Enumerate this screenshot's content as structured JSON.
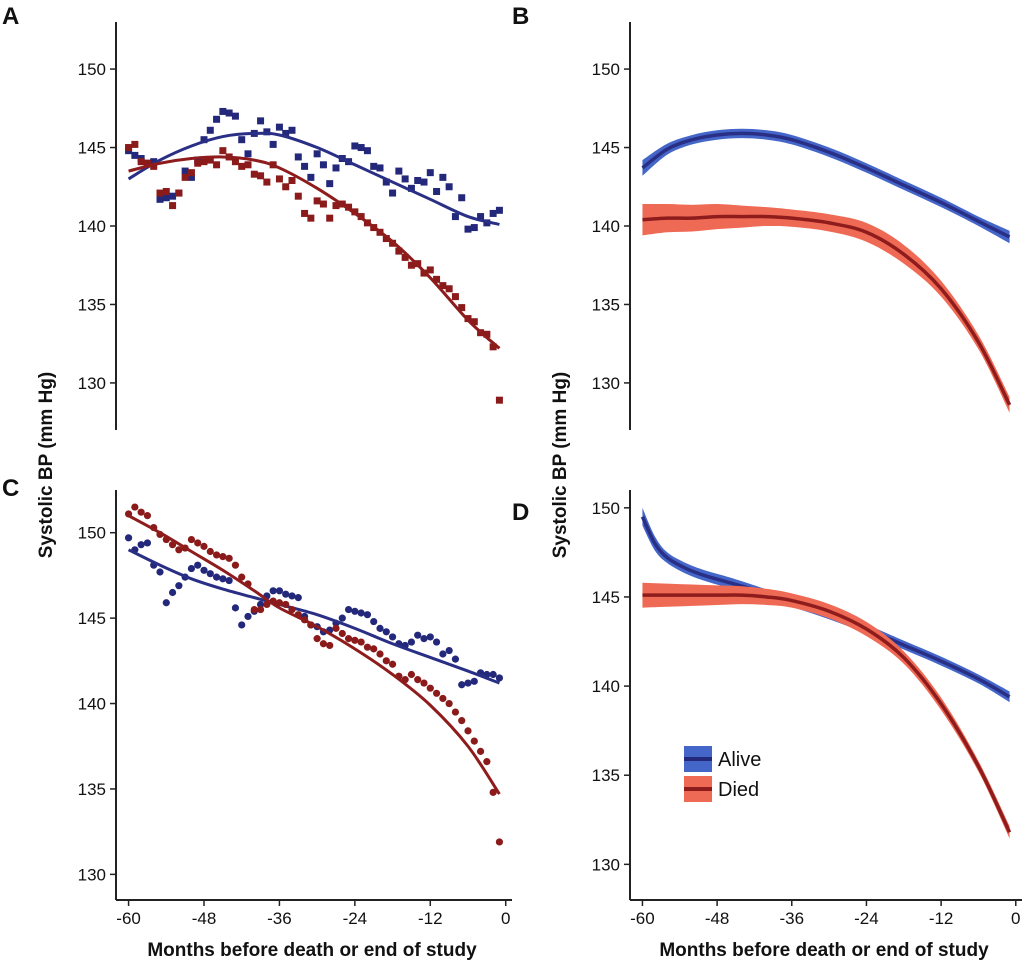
{
  "axis_titles": {
    "y_top": "Systolic BP (mm Hg)",
    "y_bottom": "Systolic BP (mm Hg)",
    "x_left": "Months before death or end of study",
    "x_right": "Months before death or end of study"
  },
  "colors": {
    "alive_marker": "#23287a",
    "alive_line": "#2a2f86",
    "alive_band": "#4466c8",
    "died_marker": "#8b1a1a",
    "died_line": "#8e1c1c",
    "died_band": "#ef6a55",
    "axis": "#222222"
  },
  "legend": [
    {
      "label": "Alive",
      "key": "alive"
    },
    {
      "label": "Died",
      "key": "died"
    }
  ],
  "chart_data": [
    {
      "panel": "A",
      "type": "scatter",
      "marker": "square",
      "xlim": [
        -62,
        1
      ],
      "ylim": [
        127,
        153
      ],
      "xticks": [],
      "yticks": [
        130,
        135,
        140,
        145,
        150
      ],
      "ylabel": "Systolic BP (mm Hg)",
      "series": [
        {
          "key": "alive",
          "x": [
            -60,
            -59,
            -58,
            -57,
            -56,
            -55,
            -54,
            -53,
            -52,
            -51,
            -50,
            -49,
            -48,
            -47,
            -46,
            -45,
            -44,
            -43,
            -42,
            -41,
            -40,
            -39,
            -38,
            -37,
            -36,
            -35,
            -34,
            -33,
            -32,
            -31,
            -30,
            -29,
            -28,
            -27,
            -26,
            -25,
            -24,
            -23,
            -22,
            -21,
            -20,
            -19,
            -18,
            -17,
            -16,
            -15,
            -14,
            -13,
            -12,
            -11,
            -10,
            -9,
            -8,
            -7,
            -6,
            -5,
            -4,
            -3,
            -2,
            -1
          ],
          "y": [
            144.8,
            144.5,
            144.3,
            144.0,
            144.1,
            141.7,
            141.8,
            141.9,
            142.1,
            143.5,
            143.1,
            144.2,
            145.5,
            146.1,
            146.8,
            147.3,
            147.2,
            147.0,
            145.5,
            144.6,
            145.9,
            146.7,
            146.0,
            145.2,
            146.3,
            145.9,
            146.1,
            144.4,
            143.8,
            143.1,
            144.6,
            143.9,
            142.7,
            143.7,
            144.3,
            144.1,
            145.1,
            145.0,
            144.8,
            143.8,
            143.7,
            142.8,
            142.1,
            143.5,
            143.0,
            142.4,
            142.9,
            142.8,
            143.4,
            142.2,
            143.1,
            142.5,
            140.6,
            141.8,
            139.8,
            139.9,
            140.6,
            140.2,
            140.8,
            141.0
          ],
          "fit_x": [
            -60,
            -55,
            -50,
            -45,
            -40,
            -36,
            -30,
            -24,
            -18,
            -12,
            -6,
            -1
          ],
          "fit_y": [
            143.0,
            144.2,
            145.1,
            145.7,
            145.9,
            145.8,
            145.0,
            143.9,
            142.8,
            141.7,
            140.6,
            140.1
          ]
        },
        {
          "key": "died",
          "x": [
            -60,
            -59,
            -58,
            -57,
            -56,
            -55,
            -54,
            -53,
            -52,
            -51,
            -50,
            -49,
            -48,
            -47,
            -46,
            -45,
            -44,
            -43,
            -42,
            -41,
            -40,
            -39,
            -38,
            -37,
            -36,
            -35,
            -34,
            -33,
            -32,
            -31,
            -30,
            -29,
            -28,
            -27,
            -26,
            -25,
            -24,
            -23,
            -22,
            -21,
            -20,
            -19,
            -18,
            -17,
            -16,
            -15,
            -14,
            -13,
            -12,
            -11,
            -10,
            -9,
            -8,
            -7,
            -6,
            -5,
            -4,
            -3,
            -2,
            -1
          ],
          "y": [
            145.0,
            145.2,
            144.1,
            144.0,
            143.8,
            142.1,
            142.2,
            141.3,
            142.1,
            143.1,
            143.4,
            144.0,
            144.1,
            144.2,
            143.9,
            144.8,
            144.4,
            144.1,
            143.8,
            143.9,
            143.3,
            143.2,
            142.8,
            143.9,
            143.0,
            142.5,
            142.9,
            141.9,
            140.8,
            140.5,
            141.6,
            141.4,
            140.5,
            141.3,
            141.4,
            141.2,
            140.9,
            140.6,
            140.2,
            139.9,
            139.6,
            139.2,
            138.9,
            138.4,
            138.0,
            137.5,
            137.6,
            137.0,
            137.2,
            136.6,
            136.2,
            136.0,
            135.5,
            134.8,
            134.1,
            133.9,
            133.2,
            133.1,
            132.3,
            128.9
          ],
          "fit_x": [
            -60,
            -55,
            -50,
            -45,
            -40,
            -36,
            -30,
            -24,
            -18,
            -12,
            -6,
            -1
          ],
          "fit_y": [
            143.5,
            144.0,
            144.3,
            144.4,
            144.2,
            143.7,
            142.4,
            140.8,
            139.0,
            136.7,
            134.0,
            132.2
          ]
        }
      ]
    },
    {
      "panel": "B",
      "type": "line",
      "band": true,
      "xlim": [
        -62,
        1
      ],
      "ylim": [
        127,
        153
      ],
      "xticks": [],
      "yticks": [
        130,
        135,
        140,
        145,
        150
      ],
      "series": [
        {
          "key": "alive",
          "x": [
            -60,
            -56,
            -52,
            -48,
            -44,
            -40,
            -36,
            -30,
            -24,
            -18,
            -12,
            -6,
            -1
          ],
          "y": [
            143.7,
            144.9,
            145.5,
            145.8,
            145.9,
            145.8,
            145.5,
            144.7,
            143.7,
            142.6,
            141.5,
            140.3,
            139.3
          ],
          "band_half_width": [
            0.5,
            0.35,
            0.3,
            0.3,
            0.3,
            0.3,
            0.3,
            0.3,
            0.3,
            0.3,
            0.3,
            0.3,
            0.4
          ]
        },
        {
          "key": "died",
          "x": [
            -60,
            -56,
            -52,
            -48,
            -44,
            -40,
            -36,
            -30,
            -24,
            -18,
            -12,
            -6,
            -1
          ],
          "y": [
            140.4,
            140.5,
            140.5,
            140.6,
            140.6,
            140.6,
            140.5,
            140.2,
            139.6,
            138.2,
            136.0,
            132.6,
            128.6
          ],
          "band_half_width": [
            1.0,
            0.9,
            0.85,
            0.8,
            0.7,
            0.6,
            0.55,
            0.55,
            0.6,
            0.6,
            0.5,
            0.45,
            0.5
          ]
        }
      ]
    },
    {
      "panel": "C",
      "type": "scatter",
      "marker": "circle",
      "xlim": [
        -62,
        1
      ],
      "ylim": [
        128.5,
        152.5
      ],
      "xticks": [
        -60,
        -48,
        -36,
        -24,
        -12,
        0
      ],
      "yticks": [
        130,
        135,
        140,
        145,
        150
      ],
      "ylabel": "Systolic BP (mm Hg)",
      "xlabel": "Months before death or end of study",
      "series": [
        {
          "key": "alive",
          "x": [
            -60,
            -59,
            -58,
            -57,
            -56,
            -55,
            -54,
            -53,
            -52,
            -51,
            -50,
            -49,
            -48,
            -47,
            -46,
            -45,
            -44,
            -43,
            -42,
            -41,
            -40,
            -39,
            -38,
            -37,
            -36,
            -35,
            -34,
            -33,
            -32,
            -31,
            -30,
            -29,
            -28,
            -27,
            -26,
            -25,
            -24,
            -23,
            -22,
            -21,
            -20,
            -19,
            -18,
            -17,
            -16,
            -15,
            -14,
            -13,
            -12,
            -11,
            -10,
            -9,
            -8,
            -7,
            -6,
            -5,
            -4,
            -3,
            -2,
            -1
          ],
          "y": [
            149.7,
            149.0,
            149.3,
            149.4,
            148.1,
            147.7,
            145.9,
            146.5,
            146.9,
            147.4,
            147.9,
            148.1,
            147.8,
            147.6,
            147.4,
            147.3,
            147.2,
            145.6,
            144.6,
            145.1,
            145.4,
            145.8,
            146.3,
            146.6,
            146.6,
            146.4,
            146.3,
            146.2,
            145.1,
            144.6,
            144.5,
            144.2,
            144.3,
            144.7,
            145.0,
            145.5,
            145.4,
            145.3,
            145.2,
            144.8,
            144.4,
            144.2,
            143.9,
            143.5,
            143.4,
            143.6,
            144.0,
            143.8,
            143.9,
            143.6,
            142.9,
            143.1,
            142.6,
            141.1,
            141.2,
            141.3,
            141.8,
            141.7,
            141.7,
            141.5
          ],
          "fit_x": [
            -60,
            -55,
            -50,
            -45,
            -40,
            -36,
            -30,
            -24,
            -18,
            -12,
            -6,
            -1
          ],
          "fit_y": [
            149.0,
            148.1,
            147.3,
            146.7,
            146.2,
            145.8,
            145.2,
            144.4,
            143.5,
            142.7,
            141.9,
            141.2
          ]
        },
        {
          "key": "died",
          "x": [
            -60,
            -59,
            -58,
            -57,
            -56,
            -55,
            -54,
            -53,
            -52,
            -51,
            -50,
            -49,
            -48,
            -47,
            -46,
            -45,
            -44,
            -43,
            -42,
            -41,
            -40,
            -39,
            -38,
            -37,
            -36,
            -35,
            -34,
            -33,
            -32,
            -31,
            -30,
            -29,
            -28,
            -27,
            -26,
            -25,
            -24,
            -23,
            -22,
            -21,
            -20,
            -19,
            -18,
            -17,
            -16,
            -15,
            -14,
            -13,
            -12,
            -11,
            -10,
            -9,
            -8,
            -7,
            -6,
            -5,
            -4,
            -3,
            -2,
            -1
          ],
          "y": [
            151.1,
            151.5,
            151.2,
            151.0,
            150.3,
            149.9,
            149.6,
            149.3,
            149.0,
            149.1,
            149.6,
            149.4,
            149.2,
            148.9,
            148.7,
            148.6,
            148.5,
            148.1,
            147.4,
            147.0,
            145.5,
            145.5,
            145.8,
            146.0,
            145.9,
            145.8,
            145.5,
            145.2,
            144.9,
            144.6,
            143.8,
            143.5,
            143.4,
            144.4,
            144.1,
            143.8,
            143.7,
            143.6,
            143.3,
            143.2,
            142.9,
            142.5,
            142.3,
            141.6,
            141.4,
            141.7,
            141.4,
            141.2,
            140.9,
            140.6,
            140.3,
            140.0,
            139.5,
            139.0,
            138.4,
            137.8,
            137.2,
            136.6,
            134.8,
            131.9
          ],
          "fit_x": [
            -60,
            -55,
            -50,
            -45,
            -40,
            -36,
            -30,
            -24,
            -18,
            -12,
            -6,
            -1
          ],
          "fit_y": [
            151.0,
            150.0,
            148.9,
            147.8,
            146.6,
            145.6,
            144.5,
            143.2,
            141.7,
            139.9,
            137.5,
            134.7
          ]
        }
      ]
    },
    {
      "panel": "D",
      "type": "line",
      "band": true,
      "xlim": [
        -62,
        1
      ],
      "ylim": [
        128,
        151
      ],
      "xticks": [
        -60,
        -48,
        -36,
        -24,
        -12,
        0
      ],
      "yticks": [
        130,
        135,
        140,
        145,
        150
      ],
      "xlabel": "Months before death or end of study",
      "series": [
        {
          "key": "alive",
          "x": [
            -60,
            -58,
            -56,
            -53,
            -50,
            -46,
            -42,
            -36,
            -30,
            -24,
            -18,
            -12,
            -6,
            -1
          ],
          "y": [
            149.5,
            148.0,
            147.2,
            146.6,
            146.2,
            145.8,
            145.4,
            144.7,
            144.0,
            143.2,
            142.3,
            141.4,
            140.4,
            139.4
          ],
          "band_half_width": [
            0.5,
            0.4,
            0.3,
            0.3,
            0.3,
            0.3,
            0.25,
            0.25,
            0.25,
            0.25,
            0.25,
            0.25,
            0.25,
            0.3
          ]
        },
        {
          "key": "died",
          "x": [
            -60,
            -56,
            -52,
            -48,
            -44,
            -40,
            -36,
            -30,
            -24,
            -18,
            -12,
            -6,
            -1
          ],
          "y": [
            145.1,
            145.1,
            145.1,
            145.1,
            145.1,
            145.0,
            144.8,
            144.2,
            143.2,
            141.6,
            139.0,
            135.5,
            131.8
          ],
          "band_half_width": [
            0.7,
            0.65,
            0.6,
            0.55,
            0.5,
            0.45,
            0.4,
            0.4,
            0.4,
            0.35,
            0.35,
            0.3,
            0.35
          ]
        }
      ]
    }
  ]
}
